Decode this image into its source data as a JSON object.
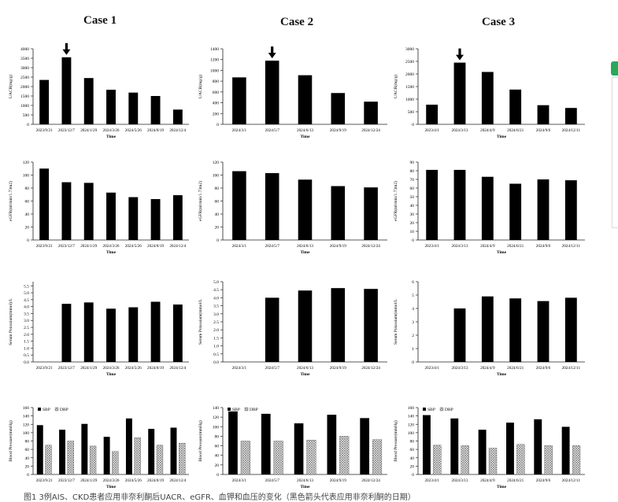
{
  "case_titles": [
    "Case 1",
    "Case 2",
    "Case 3"
  ],
  "caption": "图1 3例AIS、CKD患者应用非奈利酮后UACR、eGFR、血钾和血压的变化（黑色箭头代表应用非奈利酮的日期）",
  "legend": {
    "sbp": "SBP",
    "dbp": "DBP"
  },
  "colors": {
    "bar": "#000000",
    "axis": "#222222",
    "dbp_hatch": "#9a9a9a",
    "side_tab": "#29a85a"
  },
  "chart_data": [
    {
      "type": "bar",
      "case": 1,
      "ylabel": "UACR(mg/g)",
      "xlabel": "Time",
      "categories": [
        "2023/9/21",
        "2023/12/7",
        "2024/1/29",
        "2024/3/26",
        "2024/5/26",
        "2024/8/19",
        "2024/12/4"
      ],
      "values": [
        2350,
        3550,
        2450,
        1830,
        1680,
        1500,
        780
      ],
      "ylim": [
        0,
        4000
      ],
      "yticks": [
        0,
        500,
        1000,
        1500,
        2000,
        2500,
        3000,
        3500,
        4000
      ],
      "arrow_index": 1
    },
    {
      "type": "bar",
      "case": 2,
      "ylabel": "UACR(mg/g)",
      "xlabel": "Time",
      "categories": [
        "2024/3/1",
        "2024/5/7",
        "2024/6/13",
        "2024/9/19",
        "2024/12/24"
      ],
      "values": [
        870,
        1180,
        910,
        580,
        420
      ],
      "ylim": [
        0,
        1400
      ],
      "yticks": [
        0,
        200,
        400,
        600,
        800,
        1000,
        1200,
        1400
      ],
      "arrow_index": 1
    },
    {
      "type": "bar",
      "case": 3,
      "ylabel": "UACR(mg/g)",
      "xlabel": "Time",
      "categories": [
        "2023/4/1",
        "2024/3/13",
        "2024/4/9",
        "2024/6/21",
        "2024/9/6",
        "2024/12/11"
      ],
      "values": [
        780,
        2450,
        2080,
        1380,
        760,
        650
      ],
      "ylim": [
        0,
        3000
      ],
      "yticks": [
        0,
        500,
        1000,
        1500,
        2000,
        2500,
        3000
      ],
      "arrow_index": 1
    },
    {
      "type": "bar",
      "case": 1,
      "ylabel": "eGFR(ml/min/1.73m2)",
      "xlabel": "Time",
      "categories": [
        "2023/9/21",
        "2023/12/7",
        "2024/1/29",
        "2024/3/26",
        "2024/5/26",
        "2024/8/19",
        "2024/12/4"
      ],
      "values": [
        110,
        89,
        88,
        73,
        66,
        63,
        69
      ],
      "ylim": [
        0,
        120
      ],
      "yticks": [
        0,
        20,
        40,
        60,
        80,
        100,
        120
      ]
    },
    {
      "type": "bar",
      "case": 2,
      "ylabel": "eGFR(ml/min/1.73m2)",
      "xlabel": "Time",
      "categories": [
        "2024/3/1",
        "2024/5/7",
        "2024/6/13",
        "2024/9/19",
        "2024/12/24"
      ],
      "values": [
        106,
        103,
        93,
        83,
        81
      ],
      "ylim": [
        0,
        120
      ],
      "yticks": [
        0,
        20,
        40,
        60,
        80,
        100,
        120
      ]
    },
    {
      "type": "bar",
      "case": 3,
      "ylabel": "eGFR(ml/min/1.73m2)",
      "xlabel": "Time",
      "categories": [
        "2023/4/1",
        "2024/3/13",
        "2024/4/9",
        "2024/6/21",
        "2024/9/6",
        "2024/12/11"
      ],
      "values": [
        81,
        81,
        73,
        65,
        70,
        69
      ],
      "ylim": [
        0,
        90
      ],
      "yticks": [
        0,
        10,
        20,
        30,
        40,
        50,
        60,
        70,
        80,
        90
      ]
    },
    {
      "type": "bar",
      "case": 1,
      "ylabel": "Serum Potassium(mmol)/L",
      "xlabel": "Time",
      "categories": [
        "2023/9/21",
        "2023/12/7",
        "2024/1/29",
        "2024/3/26",
        "2024/5/26",
        "2024/8/19",
        "2024/12/4"
      ],
      "values": [
        0,
        4.2,
        4.3,
        3.85,
        3.95,
        4.35,
        4.15
      ],
      "ylim": [
        0,
        5.8
      ],
      "yticks": [
        0,
        0.5,
        1.0,
        1.5,
        2.0,
        2.5,
        3.0,
        3.5,
        4.0,
        4.5,
        5.0,
        5.5
      ]
    },
    {
      "type": "bar",
      "case": 2,
      "ylabel": "Serum Potassium(mmol/L",
      "xlabel": "Time",
      "categories": [
        "2024/3/1",
        "2024/5/7",
        "2024/6/13",
        "2024/9/19",
        "2024/12/24"
      ],
      "values": [
        0,
        4.0,
        4.45,
        4.6,
        4.55
      ],
      "ylim": [
        0,
        5.0
      ],
      "yticks": [
        0,
        0.5,
        1.0,
        1.5,
        2.0,
        2.5,
        3.0,
        3.5,
        4.0,
        4.5,
        5.0
      ]
    },
    {
      "type": "bar",
      "case": 3,
      "ylabel": "Serum Potassium(mmol/L",
      "xlabel": "Time",
      "categories": [
        "2023/4/1",
        "2024/3/13",
        "2024/4/9",
        "2024/6/21",
        "2024/9/6",
        "2024/12/11"
      ],
      "values": [
        0,
        4.0,
        4.9,
        4.75,
        4.55,
        4.8
      ],
      "ylim": [
        0,
        6.0
      ],
      "yticks": [
        0,
        1.0,
        2.0,
        3.0,
        4.0,
        5.0,
        6.0
      ]
    },
    {
      "type": "bar",
      "case": 1,
      "ylabel": "Blood Pressure(mmHg)",
      "xlabel": "Time",
      "categories": [
        "2023/9/21",
        "2023/12/7",
        "2024/1/29",
        "2024/3/26",
        "2024/5/26",
        "2024/8/19",
        "2024/12/4"
      ],
      "series": [
        {
          "name": "SBP",
          "values": [
            118,
            107,
            121,
            90,
            134,
            109,
            112
          ]
        },
        {
          "name": "DBP",
          "values": [
            70,
            80,
            68,
            55,
            88,
            70,
            75
          ]
        }
      ],
      "ylim": [
        0,
        160
      ],
      "yticks": [
        0,
        20,
        40,
        60,
        80,
        100,
        120,
        140,
        160
      ]
    },
    {
      "type": "bar",
      "case": 2,
      "ylabel": "Blood Pressure(mmHg)",
      "xlabel": "Time",
      "categories": [
        "2024/3/1",
        "2024/5/7",
        "2024/6/13",
        "2024/9/19",
        "2024/12/24"
      ],
      "series": [
        {
          "name": "SBP",
          "values": [
            132,
            127,
            107,
            125,
            118
          ]
        },
        {
          "name": "DBP",
          "values": [
            70,
            70,
            72,
            80,
            73
          ]
        }
      ],
      "ylim": [
        0,
        140
      ],
      "yticks": [
        0,
        20,
        40,
        60,
        80,
        100,
        120,
        140
      ]
    },
    {
      "type": "bar",
      "case": 3,
      "ylabel": "Blood Pressure(mmHg)",
      "xlabel": "Time",
      "categories": [
        "2023/4/1",
        "2024/3/13",
        "2024/4/9",
        "2024/6/21",
        "2024/9/6",
        "2024/12/11"
      ],
      "series": [
        {
          "name": "SBP",
          "values": [
            142,
            134,
            107,
            124,
            132,
            114
          ]
        },
        {
          "name": "DBP",
          "values": [
            70,
            69,
            63,
            72,
            69,
            69
          ]
        }
      ],
      "ylim": [
        0,
        160
      ],
      "yticks": [
        0,
        20,
        40,
        60,
        80,
        100,
        120,
        140,
        160
      ]
    }
  ]
}
